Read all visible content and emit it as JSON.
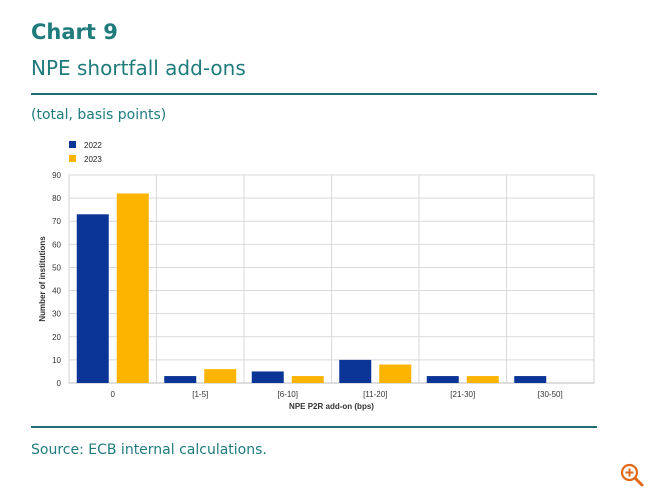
{
  "header": {
    "chart_label": "Chart 9",
    "title": "NPE shortfall add-ons",
    "subtitle": "(total, basis points)"
  },
  "footer": {
    "source": "Source: ECB internal calculations."
  },
  "icons": {
    "zoom": "zoom-in-icon"
  },
  "colors": {
    "accent": "#1f7b7c",
    "series_2022": "#0a3596",
    "series_2023": "#fdb400"
  },
  "chart_data": {
    "type": "bar",
    "categories": [
      "0",
      "[1-5]",
      "[6-10]",
      "[11-20]",
      "[21-30]",
      "[30-50]"
    ],
    "series": [
      {
        "name": "2022",
        "values": [
          73,
          3,
          5,
          10,
          3,
          3
        ]
      },
      {
        "name": "2023",
        "values": [
          82,
          6,
          3,
          8,
          3,
          0
        ]
      }
    ],
    "xlabel": "NPE P2R add-on (bps)",
    "ylabel": "Number of institutions",
    "ylim": [
      0,
      90
    ],
    "yticks": [
      "0",
      "10",
      "20",
      "30",
      "40",
      "50",
      "60",
      "70",
      "80",
      "90"
    ],
    "grid": true,
    "legend_position": "top-left"
  }
}
